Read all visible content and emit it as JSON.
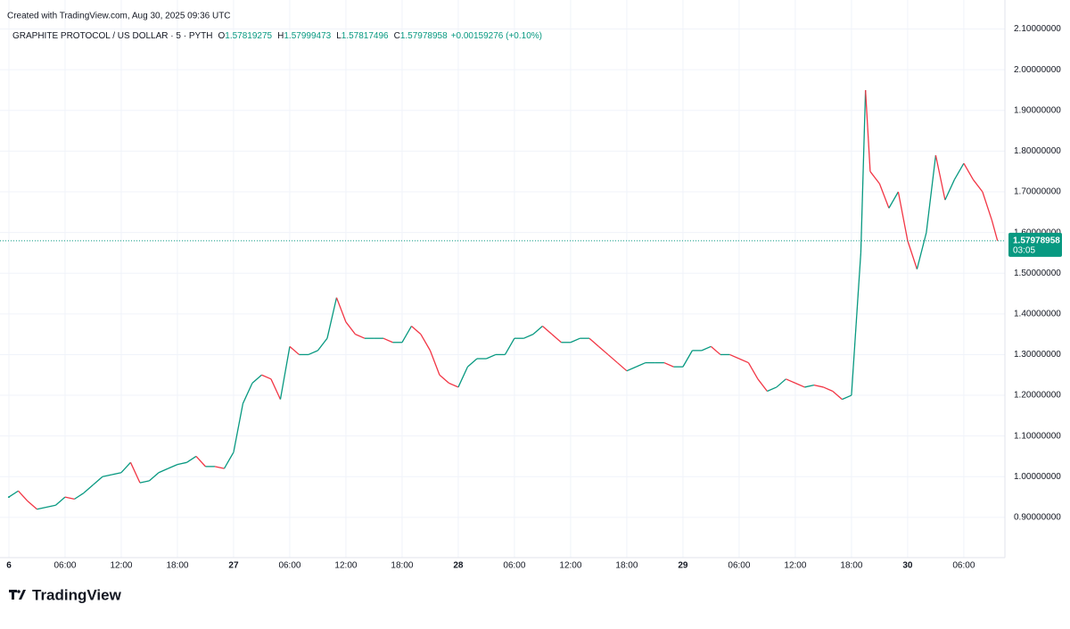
{
  "created": "Created with TradingView.com, Aug 30, 2025 09:36 UTC",
  "brand": "TradingView",
  "chart_data": {
    "type": "line",
    "title": "GRAPHITE PROTOCOL / US DOLLAR · 5 · PYTH",
    "legend_values": [
      {
        "key": "O",
        "value": "1.57819275"
      },
      {
        "key": "H",
        "value": "1.57999473"
      },
      {
        "key": "L",
        "value": "1.57817496"
      },
      {
        "key": "C",
        "value": "1.57978958"
      }
    ],
    "change": "+0.00159276 (+0.10%)",
    "last_price": 1.57978958,
    "last_price_label": "1.57978958",
    "countdown": "03:05",
    "up_color": "#089981",
    "down_color": "#f23645",
    "x": [
      0,
      1,
      2,
      3,
      4,
      5,
      6,
      7,
      8,
      9,
      10,
      11,
      12,
      13,
      14,
      15,
      16,
      17,
      18,
      19,
      20,
      21,
      22,
      23,
      24,
      25,
      26,
      27,
      28,
      29,
      30,
      31,
      32,
      33,
      34,
      35,
      36,
      37,
      38,
      39,
      40,
      41,
      42,
      43,
      44,
      45,
      46,
      47,
      48,
      49,
      50,
      51,
      52,
      53,
      54,
      55,
      56,
      57,
      58,
      59,
      60,
      61,
      62,
      63,
      64,
      65,
      66,
      67,
      68,
      69,
      70,
      71,
      72,
      73,
      74,
      75,
      76,
      77,
      78,
      79,
      80,
      81,
      82,
      83,
      84,
      85,
      86,
      87,
      88,
      89,
      90,
      91,
      91.5,
      92,
      93,
      94,
      95,
      96,
      97,
      98,
      99,
      100,
      101,
      102,
      103,
      104,
      105,
      105.6
    ],
    "series": [
      {
        "name": "GRAPHITE PROTOCOL / US DOLLAR",
        "values": [
          0.95,
          0.965,
          0.94,
          0.92,
          0.925,
          0.93,
          0.95,
          0.945,
          0.96,
          0.98,
          1.0,
          1.005,
          1.01,
          1.035,
          0.985,
          0.99,
          1.01,
          1.02,
          1.03,
          1.035,
          1.05,
          1.025,
          1.025,
          1.02,
          1.06,
          1.18,
          1.23,
          1.25,
          1.24,
          1.19,
          1.32,
          1.3,
          1.3,
          1.31,
          1.34,
          1.44,
          1.38,
          1.35,
          1.34,
          1.34,
          1.34,
          1.33,
          1.33,
          1.37,
          1.35,
          1.31,
          1.25,
          1.23,
          1.22,
          1.27,
          1.29,
          1.29,
          1.3,
          1.3,
          1.34,
          1.34,
          1.35,
          1.37,
          1.35,
          1.33,
          1.33,
          1.34,
          1.34,
          1.32,
          1.3,
          1.28,
          1.26,
          1.27,
          1.28,
          1.28,
          1.28,
          1.27,
          1.27,
          1.31,
          1.31,
          1.32,
          1.3,
          1.3,
          1.29,
          1.28,
          1.24,
          1.21,
          1.22,
          1.24,
          1.23,
          1.22,
          1.225,
          1.22,
          1.21,
          1.19,
          1.2,
          1.55,
          1.95,
          1.75,
          1.72,
          1.66,
          1.7,
          1.58,
          1.51,
          1.6,
          1.79,
          1.68,
          1.73,
          1.77,
          1.73,
          1.7,
          1.63,
          1.57978958
        ]
      }
    ],
    "xlim": [
      -0.95,
      106.2
    ],
    "xticks": [
      {
        "value": 0,
        "label": "6"
      },
      {
        "value": 6,
        "label": "06:00"
      },
      {
        "value": 12,
        "label": "12:00"
      },
      {
        "value": 18,
        "label": "18:00"
      },
      {
        "value": 24,
        "label": "27"
      },
      {
        "value": 30,
        "label": "06:00"
      },
      {
        "value": 36,
        "label": "12:00"
      },
      {
        "value": 42,
        "label": "18:00"
      },
      {
        "value": 48,
        "label": "28"
      },
      {
        "value": 54,
        "label": "06:00"
      },
      {
        "value": 60,
        "label": "12:00"
      },
      {
        "value": 66,
        "label": "18:00"
      },
      {
        "value": 72,
        "label": "29"
      },
      {
        "value": 78,
        "label": "06:00"
      },
      {
        "value": 84,
        "label": "12:00"
      },
      {
        "value": 90,
        "label": "18:00"
      },
      {
        "value": 96,
        "label": "30"
      },
      {
        "value": 102,
        "label": "06:00"
      }
    ],
    "ylim": [
      0.8,
      2.11
    ],
    "yticks": [
      {
        "value": 0.9,
        "label": "0.90000000"
      },
      {
        "value": 1.0,
        "label": "1.00000000"
      },
      {
        "value": 1.1,
        "label": "1.10000000"
      },
      {
        "value": 1.2,
        "label": "1.20000000"
      },
      {
        "value": 1.3,
        "label": "1.30000000"
      },
      {
        "value": 1.4,
        "label": "1.40000000"
      },
      {
        "value": 1.5,
        "label": "1.50000000"
      },
      {
        "value": 1.6,
        "label": "1.60000000"
      },
      {
        "value": 1.7,
        "label": "1.70000000"
      },
      {
        "value": 1.8,
        "label": "1.80000000"
      },
      {
        "value": 1.9,
        "label": "1.90000000"
      },
      {
        "value": 2.0,
        "label": "2.00000000"
      },
      {
        "value": 2.1,
        "label": "2.10000000"
      }
    ],
    "grid": true
  }
}
